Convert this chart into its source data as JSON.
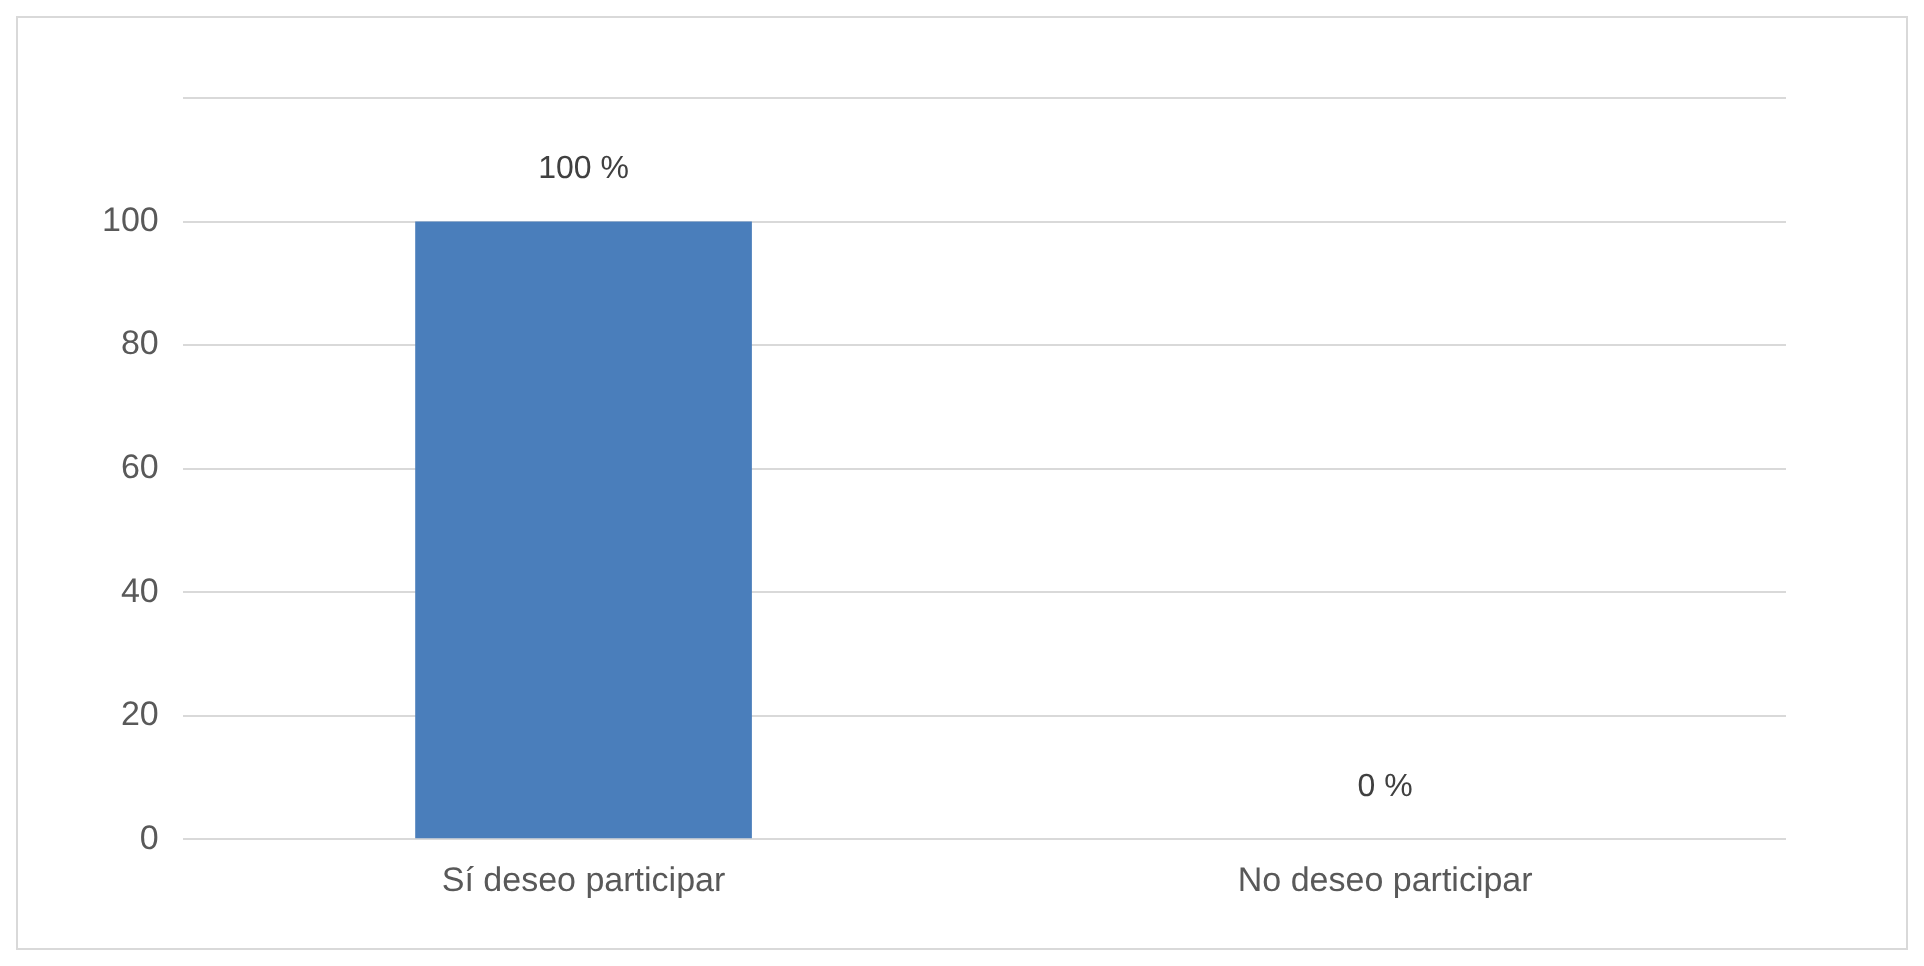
{
  "chart_data": {
    "type": "bar",
    "categories": [
      "Sí deseo participar",
      "No deseo participar"
    ],
    "values": [
      100,
      0
    ],
    "value_labels": [
      "100 %",
      "0 %"
    ],
    "color": "#4a7ebb",
    "ylim": [
      0,
      120
    ],
    "yticks": [
      0,
      20,
      40,
      60,
      80,
      100,
      {
        "value": 120,
        "label": null
      }
    ],
    "grid": "y"
  }
}
